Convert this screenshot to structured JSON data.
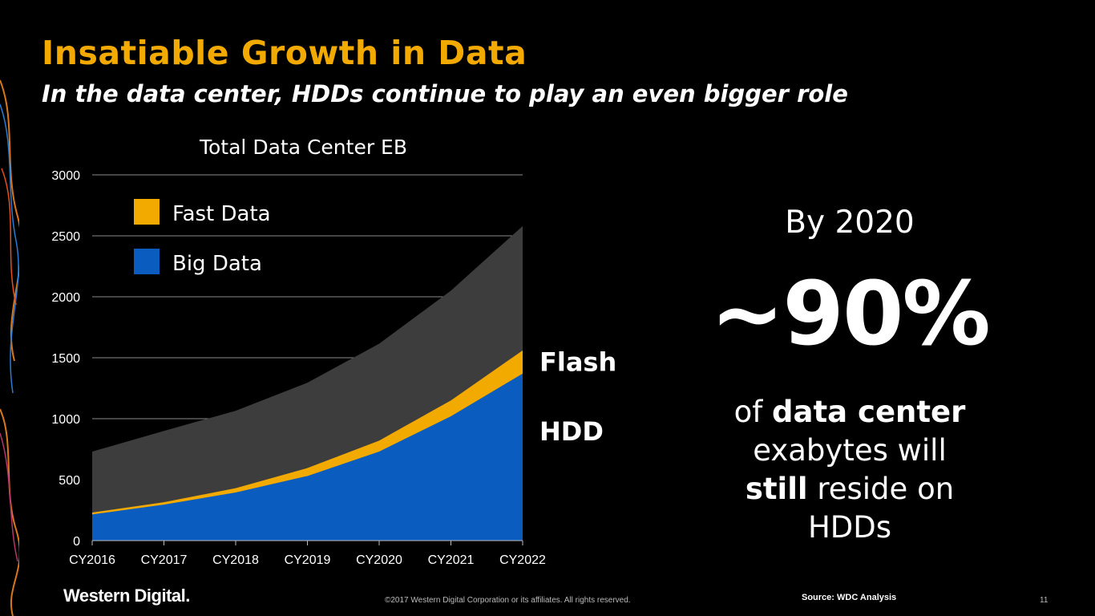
{
  "slide": {
    "title": "Insatiable Growth in Data",
    "subtitle": "In the data center, HDDs continue to play an even bigger role"
  },
  "callout": {
    "by_year": "By 2020",
    "percent": "~90%",
    "line1_pre": "of ",
    "line1_bold": "data center",
    "line2": "exabytes will",
    "line3_bold": "still",
    "line3_post": " reside on",
    "line4": "HDDs"
  },
  "footer": {
    "logo": "Western Digital.",
    "copyright": "©2017 Western Digital Corporation or its affiliates. All rights reserved.",
    "source": "Source: WDC Analysis",
    "page_number": "11"
  },
  "colors": {
    "title": "#f2a900",
    "fast_data": "#f2a900",
    "big_data": "#0a5cbe",
    "total_area": "#3d3d3d",
    "background": "#000000"
  },
  "chart_data": {
    "type": "area",
    "title": "Total Data Center EB",
    "categories": [
      "CY2016",
      "CY2017",
      "CY2018",
      "CY2019",
      "CY2020",
      "CY2021",
      "CY2022"
    ],
    "ylim": [
      0,
      3000
    ],
    "yticks": [
      0,
      500,
      1000,
      1500,
      2000,
      2500,
      3000
    ],
    "grid": true,
    "legend_position": "top-left",
    "series": [
      {
        "name": "Big Data",
        "values": [
          215,
          295,
          395,
          530,
          730,
          1020,
          1370
        ],
        "color": "#0a5cbe"
      },
      {
        "name": "Fast Data",
        "values": [
          230,
          315,
          430,
          595,
          820,
          1150,
          1560
        ],
        "color": "#f2a900"
      },
      {
        "values": [
          730,
          900,
          1065,
          1295,
          1615,
          2050,
          2580
        ],
        "color": "#3d3d3d"
      }
    ],
    "annotations": [
      {
        "text": "Flash",
        "at_value": 1470
      },
      {
        "text": "HDD",
        "at_value": 900
      }
    ]
  }
}
